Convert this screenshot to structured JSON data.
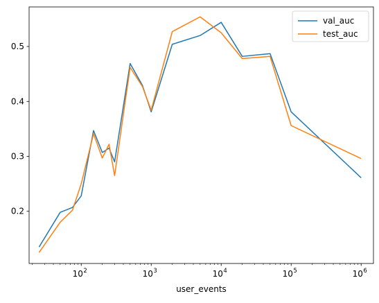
{
  "chart_data": {
    "type": "line",
    "xlabel": "user_events",
    "ylabel": "",
    "xscale": "log",
    "xlim": [
      18,
      1500000
    ],
    "ylim": [
      0.105,
      0.572
    ],
    "xticks": [
      {
        "value": 100,
        "base": "10",
        "exp": "2"
      },
      {
        "value": 1000,
        "base": "10",
        "exp": "3"
      },
      {
        "value": 10000,
        "base": "10",
        "exp": "4"
      },
      {
        "value": 100000,
        "base": "10",
        "exp": "5"
      },
      {
        "value": 1000000,
        "base": "10",
        "exp": "6"
      }
    ],
    "yticks": [
      {
        "value": 0.2,
        "label": "0.2"
      },
      {
        "value": 0.3,
        "label": "0.3"
      },
      {
        "value": 0.4,
        "label": "0.4"
      },
      {
        "value": 0.5,
        "label": "0.5"
      }
    ],
    "grid": false,
    "legend_position": "top-right",
    "series": [
      {
        "name": "val_auc",
        "color": "#1f77b4",
        "points": [
          [
            25,
            0.135
          ],
          [
            50,
            0.198
          ],
          [
            75,
            0.207
          ],
          [
            100,
            0.228
          ],
          [
            150,
            0.347
          ],
          [
            200,
            0.307
          ],
          [
            250,
            0.315
          ],
          [
            300,
            0.29
          ],
          [
            500,
            0.469
          ],
          [
            750,
            0.429
          ],
          [
            1000,
            0.381
          ],
          [
            2000,
            0.504
          ],
          [
            5000,
            0.52
          ],
          [
            10000,
            0.544
          ],
          [
            20000,
            0.482
          ],
          [
            50000,
            0.487
          ],
          [
            100000,
            0.381
          ],
          [
            1000000,
            0.261
          ]
        ]
      },
      {
        "name": "test_auc",
        "color": "#ff7f0e",
        "points": [
          [
            25,
            0.125
          ],
          [
            50,
            0.18
          ],
          [
            75,
            0.202
          ],
          [
            100,
            0.25
          ],
          [
            150,
            0.341
          ],
          [
            200,
            0.297
          ],
          [
            250,
            0.322
          ],
          [
            300,
            0.265
          ],
          [
            500,
            0.462
          ],
          [
            750,
            0.427
          ],
          [
            1000,
            0.384
          ],
          [
            2000,
            0.527
          ],
          [
            5000,
            0.554
          ],
          [
            10000,
            0.525
          ],
          [
            20000,
            0.478
          ],
          [
            50000,
            0.482
          ],
          [
            100000,
            0.356
          ],
          [
            1000000,
            0.296
          ]
        ]
      }
    ]
  }
}
